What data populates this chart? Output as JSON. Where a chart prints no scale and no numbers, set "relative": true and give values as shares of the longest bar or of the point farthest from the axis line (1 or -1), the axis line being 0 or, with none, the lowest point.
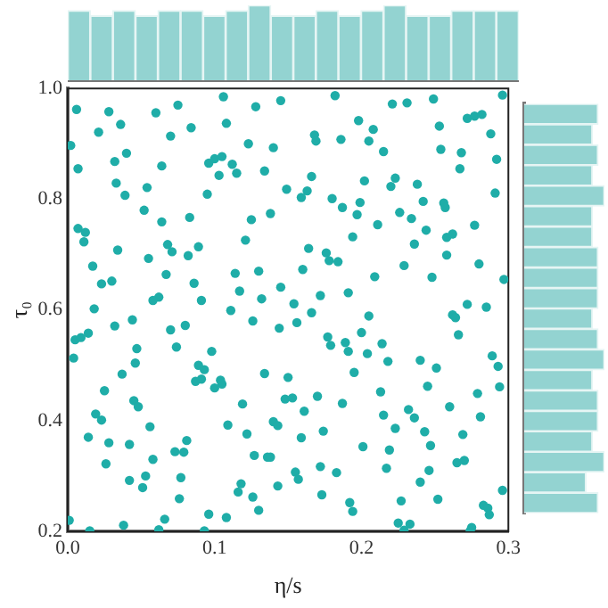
{
  "chart_data": [
    {
      "type": "bar",
      "relative": true,
      "color": "#93d3d1",
      "categories": [
        null,
        null,
        null,
        null,
        null,
        null,
        null,
        null,
        null,
        null,
        null,
        null,
        null,
        null,
        null,
        null,
        null,
        null,
        null,
        null
      ],
      "values": [
        0.93,
        0.86,
        0.93,
        0.86,
        0.93,
        0.93,
        0.86,
        0.93,
        1,
        0.86,
        0.86,
        0.93,
        0.86,
        0.93,
        1,
        0.86,
        0.86,
        0.93,
        0.93,
        0.93
      ]
    },
    {
      "type": "scatter",
      "xlabel": "η/s",
      "ylabel": "τ₀",
      "xlim": [
        0,
        0.3
      ],
      "ylim": [
        0.2,
        1.0
      ],
      "xticks": [
        {
          "value": 0,
          "label": "0.0"
        },
        0.1,
        0.2,
        0.3
      ],
      "yticks": [
        0.2,
        0.4,
        0.6,
        0.8,
        {
          "value": 1,
          "label": "1.0"
        }
      ],
      "marker": "circle",
      "grid": false,
      "series": [
        {
          "color": "#1fada8",
          "x": [
            0.006,
            0.028,
            0.06,
            0.075,
            0.106,
            0.128,
            0.145,
            0.021,
            0.036,
            0.07,
            0.084,
            0.108,
            0.002,
            0.123,
            0.14,
            0.04,
            0.032,
            0.007,
            0.064,
            0.096,
            0.1,
            0.105,
            0.112,
            0.103,
            0.115,
            0.134,
            0.033,
            0.054,
            0.039,
            0.095,
            0.149,
            0.052,
            0.064,
            0.083,
            0.125,
            0.138,
            0.007,
            0.012,
            0.011,
            0.121,
            0.068,
            0.089,
            0.034,
            0.071,
            0.082,
            0.055,
            0.017,
            0.13,
            0.067,
            0.114,
            0.03,
            0.023,
            0.086,
            0.117,
            0.145,
            0.062,
            0.058,
            0.091,
            0.132,
            0.018,
            0.111,
            0.182,
            0.221,
            0.231,
            0.249,
            0.296,
            0.198,
            0.208,
            0.168,
            0.169,
            0.186,
            0.205,
            0.215,
            0.253,
            0.272,
            0.277,
            0.282,
            0.288,
            0.254,
            0.268,
            0.292,
            0.267,
            0.166,
            0.163,
            0.159,
            0.202,
            0.223,
            0.22,
            0.238,
            0.291,
            0.18,
            0.199,
            0.187,
            0.197,
            0.242,
            0.256,
            0.257,
            0.226,
            0.234,
            0.211,
            0.244,
            0.194,
            0.258,
            0.262,
            0.277,
            0.236,
            0.164,
            0.176,
            0.178,
            0.184,
            0.16,
            0.258,
            0.229,
            0.28,
            0.209,
            0.248,
            0.297,
            0.154,
            0.172,
            0.191,
            0.272,
            0.285,
            0.032,
            0.044,
            0.005,
            0.009,
            0.014,
            0.004,
            0.047,
            0.046,
            0.037,
            0.07,
            0.08,
            0.074,
            0.126,
            0.144,
            0.098,
            0.089,
            0.093,
            0.087,
            0.091,
            0.104,
            0.105,
            0.1,
            0.134,
            0.15,
            0.025,
            0.045,
            0.048,
            0.019,
            0.023,
            0.056,
            0.014,
            0.028,
            0.042,
            0.081,
            0.073,
            0.079,
            0.026,
            0.058,
            0.119,
            0.109,
            0.122,
            0.148,
            0.14,
            0.143,
            0.127,
            0.136,
            0.138,
            0.042,
            0.053,
            0.051,
            0.077,
            0.076,
            0.118,
            0.116,
            0.126,
            0.143,
            0.13,
            0.001,
            0.015,
            0.038,
            0.062,
            0.066,
            0.096,
            0.108,
            0.093,
            0.166,
            0.205,
            0.262,
            0.264,
            0.156,
            0.177,
            0.179,
            0.189,
            0.191,
            0.2,
            0.204,
            0.214,
            0.218,
            0.266,
            0.24,
            0.251,
            0.289,
            0.293,
            0.294,
            0.195,
            0.245,
            0.153,
            0.17,
            0.187,
            0.213,
            0.161,
            0.279,
            0.26,
            0.232,
            0.236,
            0.215,
            0.281,
            0.223,
            0.174,
            0.243,
            0.269,
            0.159,
            0.247,
            0.201,
            0.219,
            0.265,
            0.27,
            0.172,
            0.183,
            0.217,
            0.246,
            0.155,
            0.157,
            0.24,
            0.173,
            0.227,
            0.252,
            0.296,
            0.192,
            0.194,
            0.283,
            0.286,
            0.287,
            0.225,
            0.233,
            0.229,
            0.275,
            0.274
          ],
          "values": [
            0.962,
            0.958,
            0.956,
            0.97,
            0.985,
            0.967,
            0.978,
            0.921,
            0.935,
            0.914,
            0.929,
            0.937,
            0.897,
            0.9,
            0.893,
            0.883,
            0.868,
            0.855,
            0.86,
            0.865,
            0.873,
            0.877,
            0.863,
            0.843,
            0.847,
            0.851,
            0.829,
            0.821,
            0.807,
            0.809,
            0.818,
            0.78,
            0.759,
            0.767,
            0.763,
            0.774,
            0.747,
            0.74,
            0.723,
            0.726,
            0.718,
            0.714,
            0.708,
            0.705,
            0.698,
            0.693,
            0.679,
            0.67,
            0.664,
            0.666,
            0.652,
            0.647,
            0.648,
            0.634,
            0.641,
            0.623,
            0.617,
            0.617,
            0.62,
            0.602,
            0.599,
            0.987,
            0.972,
            0.974,
            0.981,
            0.988,
            0.942,
            0.926,
            0.916,
            0.905,
            0.908,
            0.905,
            0.886,
            0.932,
            0.946,
            0.95,
            0.953,
            0.918,
            0.89,
            0.884,
            0.872,
            0.855,
            0.841,
            0.815,
            0.803,
            0.833,
            0.838,
            0.823,
            0.827,
            0.811,
            0.801,
            0.794,
            0.785,
            0.772,
            0.796,
            0.793,
            0.785,
            0.776,
            0.765,
            0.754,
            0.744,
            0.732,
            0.731,
            0.737,
            0.753,
            0.719,
            0.711,
            0.703,
            0.689,
            0.687,
            0.673,
            0.699,
            0.68,
            0.683,
            0.66,
            0.659,
            0.655,
            0.611,
            0.626,
            0.631,
            0.61,
            0.605,
            0.571,
            0.582,
            0.546,
            0.55,
            0.558,
            0.513,
            0.53,
            0.504,
            0.484,
            0.564,
            0.572,
            0.533,
            0.58,
            0.567,
            0.525,
            0.5,
            0.492,
            0.471,
            0.475,
            0.473,
            0.466,
            0.459,
            0.485,
            0.478,
            0.454,
            0.436,
            0.425,
            0.412,
            0.401,
            0.389,
            0.37,
            0.36,
            0.357,
            0.364,
            0.344,
            0.343,
            0.322,
            0.33,
            0.43,
            0.392,
            0.376,
            0.439,
            0.398,
            0.391,
            0.337,
            0.334,
            0.334,
            0.292,
            0.3,
            0.279,
            0.297,
            0.259,
            0.286,
            0.271,
            0.262,
            0.282,
            0.238,
            0.22,
            0.201,
            0.211,
            0.203,
            0.222,
            0.231,
            0.225,
            0.201,
            0.595,
            0.589,
            0.591,
            0.586,
            0.577,
            0.551,
            0.536,
            0.541,
            0.525,
            0.559,
            0.521,
            0.539,
            0.507,
            0.555,
            0.509,
            0.495,
            0.517,
            0.498,
            0.461,
            0.487,
            0.462,
            0.441,
            0.444,
            0.431,
            0.452,
            0.417,
            0.449,
            0.425,
            0.42,
            0.405,
            0.41,
            0.407,
            0.386,
            0.381,
            0.38,
            0.375,
            0.369,
            0.355,
            0.353,
            0.347,
            0.324,
            0.328,
            0.317,
            0.306,
            0.314,
            0.31,
            0.307,
            0.294,
            0.289,
            0.266,
            0.255,
            0.258,
            0.274,
            0.252,
            0.236,
            0.247,
            0.242,
            0.23,
            0.215,
            0.213,
            0.202,
            0.207,
            0.201
          ]
        }
      ]
    },
    {
      "type": "bar",
      "relative": true,
      "orientation": "horizontal",
      "color": "#93d3d1",
      "categories": [
        null,
        null,
        null,
        null,
        null,
        null,
        null,
        null,
        null,
        null,
        null,
        null,
        null,
        null,
        null,
        null,
        null,
        null,
        null,
        null
      ],
      "values": [
        0.92,
        0.85,
        0.92,
        0.85,
        1,
        0.85,
        0.85,
        0.92,
        0.92,
        0.92,
        0.85,
        0.92,
        1,
        0.85,
        0.92,
        0.92,
        0.85,
        1,
        0.77,
        0.92
      ]
    }
  ]
}
